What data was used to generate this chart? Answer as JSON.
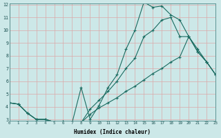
{
  "xlabel": "Humidex (Indice chaleur)",
  "background_color": "#cce8e8",
  "grid_color": "#dba8a8",
  "line_color": "#1a6b60",
  "xlim": [
    0,
    23
  ],
  "ylim": [
    3,
    12
  ],
  "xticks": [
    0,
    1,
    2,
    3,
    4,
    5,
    6,
    7,
    8,
    9,
    10,
    11,
    12,
    13,
    14,
    15,
    16,
    17,
    18,
    19,
    20,
    21,
    22,
    23
  ],
  "yticks": [
    3,
    4,
    5,
    6,
    7,
    8,
    9,
    10,
    11,
    12
  ],
  "curve1_x": [
    0,
    1,
    2,
    3,
    4,
    5,
    6,
    7,
    8,
    9,
    10,
    11,
    12,
    13,
    14,
    15,
    16,
    17,
    18,
    19,
    20,
    21,
    22,
    23
  ],
  "curve1_y": [
    4.3,
    4.2,
    3.5,
    3.0,
    3.0,
    2.8,
    2.85,
    2.75,
    5.5,
    3.0,
    4.1,
    5.5,
    6.5,
    8.5,
    10.0,
    12.2,
    11.8,
    11.9,
    11.2,
    10.8,
    9.5,
    8.3,
    7.5,
    6.5
  ],
  "curve2_x": [
    0,
    1,
    2,
    3,
    4,
    5,
    6,
    7,
    8,
    9,
    10,
    11,
    12,
    13,
    14,
    15,
    16,
    17,
    18,
    19,
    20,
    21,
    22,
    23
  ],
  "curve2_y": [
    4.3,
    4.2,
    3.5,
    3.0,
    3.0,
    2.8,
    2.85,
    2.75,
    2.75,
    3.8,
    4.5,
    5.2,
    6.0,
    7.0,
    7.8,
    9.5,
    10.0,
    10.8,
    11.0,
    9.5,
    9.5,
    8.5,
    7.5,
    6.5
  ],
  "curve3_x": [
    0,
    1,
    2,
    3,
    4,
    5,
    6,
    7,
    8,
    9,
    10,
    11,
    12,
    13,
    14,
    15,
    16,
    17,
    18,
    19,
    20,
    21,
    22,
    23
  ],
  "curve3_y": [
    4.3,
    4.2,
    3.5,
    3.0,
    3.0,
    2.8,
    2.85,
    2.75,
    2.75,
    3.4,
    3.9,
    4.3,
    4.7,
    5.2,
    5.6,
    6.1,
    6.6,
    7.0,
    7.5,
    7.9,
    9.5,
    8.3,
    7.5,
    6.5
  ]
}
